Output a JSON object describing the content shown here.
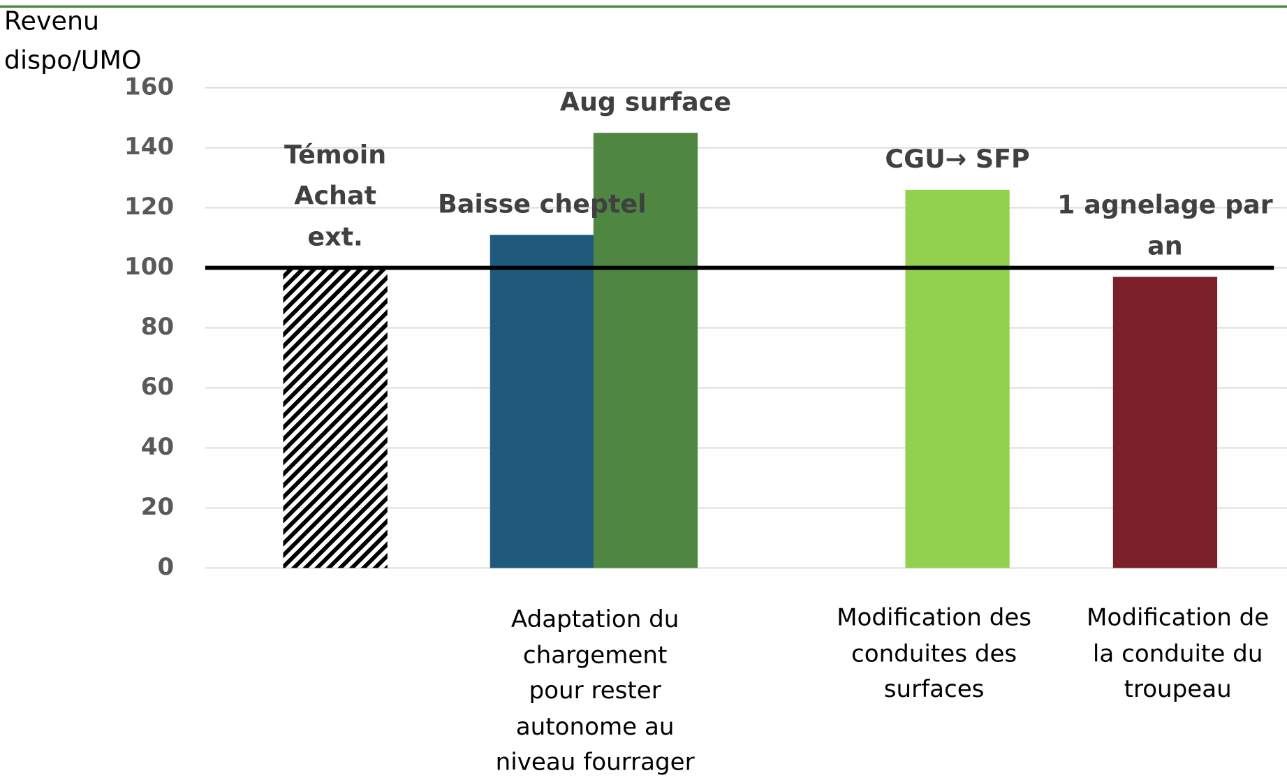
{
  "chart_data": {
    "type": "bar",
    "y_label": "Revenu dispo/UMO",
    "categories": [
      "Témoin Achat ext.",
      "Baisse cheptel",
      "Aug surface",
      "CGU→ SFP",
      "1 agnelage par an"
    ],
    "values": [
      100,
      111,
      145,
      126,
      97
    ],
    "colors": [
      "hatch",
      "#1f5a7c",
      "#4e8642",
      "#92d050",
      "#7b1f28"
    ],
    "group_labels": [
      "Adaptation du chargement pour rester autonome au niveau fourrager",
      "Modification des conduites des surfaces",
      "Modification de la conduite du troupeau"
    ],
    "reference_line": 100,
    "ylim": [
      0,
      160
    ],
    "yticks": [
      0,
      20,
      40,
      60,
      80,
      100,
      120,
      140,
      160
    ],
    "grid": true
  }
}
